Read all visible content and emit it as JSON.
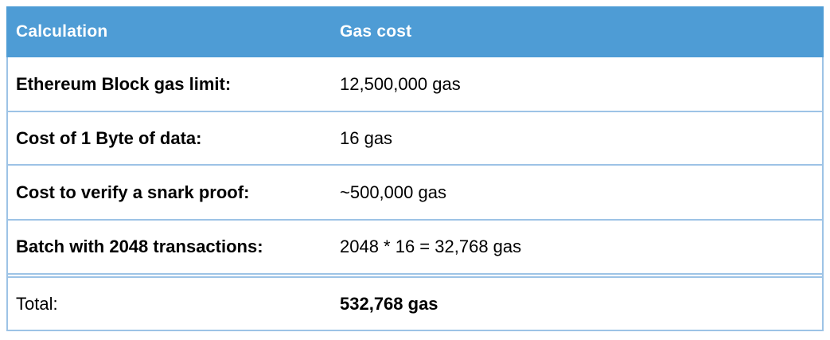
{
  "chart_data": {
    "type": "table",
    "columns": [
      "Calculation",
      "Gas cost"
    ],
    "rows": [
      [
        "Ethereum Block gas limit:",
        "12,500,000 gas"
      ],
      [
        "Cost of 1 Byte of data:",
        "16 gas"
      ],
      [
        "Cost to verify a snark proof:",
        "~500,000 gas"
      ],
      [
        "Batch with 2048 transactions:",
        "2048 * 16 = 32,768 gas"
      ],
      [
        "Total:",
        "532,768 gas"
      ]
    ],
    "notes": "Labels in column 1 are bold except Total; values in column 2 are regular except the bold total value 532,768 gas; double rule separates Total row"
  },
  "colors": {
    "header_background": "#4E9CD5",
    "header_text": "#FFFFFF",
    "border": "#9DC3E6",
    "body_text": "#000000",
    "background": "#FFFFFF"
  }
}
